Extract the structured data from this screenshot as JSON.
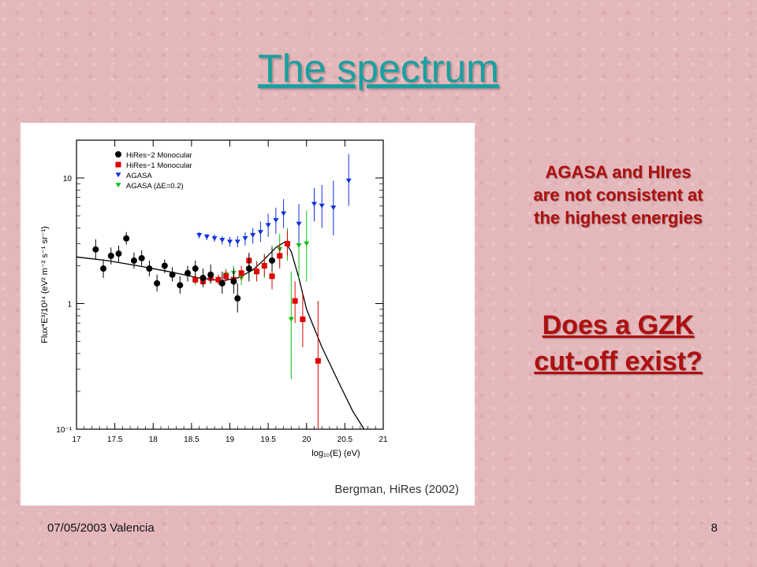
{
  "slide": {
    "title": "The spectrum",
    "side_text_lines": [
      "AGASA and HIres",
      "are not consistent at",
      "the highest energies"
    ],
    "question_lines": [
      "Does a GZK",
      "cut-off exist?"
    ],
    "footer_date": "07/05/2003 Valencia",
    "page_number": "8"
  },
  "chart_data": {
    "type": "scatter",
    "ylabel": "Flux*E³/10²⁴ (eV² m⁻² s⁻¹ sr⁻¹)",
    "xlabel": "log₁₀(E) (eV)",
    "credit": "Bergman, HiRes (2002)",
    "xlim": [
      17,
      21
    ],
    "ylim": [
      0.1,
      20
    ],
    "y_scale": "log",
    "x_ticks": [
      17,
      17.5,
      18,
      18.5,
      19,
      19.5,
      20,
      20.5,
      21
    ],
    "x_tick_labels": [
      "17",
      "17.5",
      "18",
      "18.5",
      "19",
      "19.5",
      "20",
      "20.5",
      "21"
    ],
    "y_ticks": [
      0.1,
      1,
      10
    ],
    "y_tick_labels": [
      "10⁻¹",
      "1",
      "10"
    ],
    "legend_position": "top-left",
    "series": [
      {
        "name": "HiRes−2 Monocular",
        "marker": "circle",
        "color": "#000000",
        "points": [
          [
            17.25,
            2.7,
            2.25,
            3.25
          ],
          [
            17.35,
            1.9,
            1.6,
            2.25
          ],
          [
            17.45,
            2.4,
            2.05,
            2.8
          ],
          [
            17.55,
            2.5,
            2.15,
            2.9
          ],
          [
            17.65,
            3.3,
            2.95,
            3.7
          ],
          [
            17.75,
            2.2,
            1.9,
            2.55
          ],
          [
            17.85,
            2.3,
            2.0,
            2.65
          ],
          [
            17.95,
            1.9,
            1.65,
            2.2
          ],
          [
            18.05,
            1.45,
            1.25,
            1.7
          ],
          [
            18.15,
            2.0,
            1.75,
            2.25
          ],
          [
            18.25,
            1.7,
            1.5,
            1.95
          ],
          [
            18.35,
            1.4,
            1.2,
            1.65
          ],
          [
            18.45,
            1.75,
            1.5,
            2.0
          ],
          [
            18.55,
            1.9,
            1.6,
            2.2
          ],
          [
            18.65,
            1.6,
            1.35,
            1.9
          ],
          [
            18.75,
            1.7,
            1.45,
            2.05
          ],
          [
            18.9,
            1.45,
            1.2,
            1.8
          ],
          [
            19.05,
            1.5,
            1.2,
            1.9
          ],
          [
            19.1,
            1.1,
            0.85,
            1.45
          ],
          [
            19.25,
            1.9,
            1.5,
            2.5
          ],
          [
            19.55,
            2.2,
            1.8,
            2.8
          ]
        ]
      },
      {
        "name": "HiRes−1 Monocular",
        "marker": "square",
        "color": "#e00000",
        "points": [
          [
            18.55,
            1.55,
            1.45,
            1.7
          ],
          [
            18.65,
            1.5,
            1.4,
            1.65
          ],
          [
            18.75,
            1.6,
            1.48,
            1.75
          ],
          [
            18.85,
            1.55,
            1.42,
            1.7
          ],
          [
            18.95,
            1.65,
            1.5,
            1.85
          ],
          [
            19.05,
            1.55,
            1.4,
            1.75
          ],
          [
            19.15,
            1.75,
            1.55,
            2.0
          ],
          [
            19.25,
            2.2,
            1.9,
            2.55
          ],
          [
            19.35,
            1.8,
            1.5,
            2.15
          ],
          [
            19.45,
            2.0,
            1.65,
            2.45
          ],
          [
            19.55,
            1.65,
            1.3,
            2.1
          ],
          [
            19.65,
            2.4,
            1.9,
            3.0
          ],
          [
            19.75,
            3.0,
            2.4,
            3.8
          ],
          [
            19.85,
            1.05,
            0.7,
            1.5
          ],
          [
            19.95,
            0.75,
            0.45,
            1.2
          ],
          [
            20.15,
            0.35,
            0.1,
            1.05
          ]
        ]
      },
      {
        "name": "AGASA",
        "marker": "triangle-down",
        "color": "#1030e0",
        "points": [
          [
            18.6,
            3.5,
            3.3,
            3.7
          ],
          [
            18.7,
            3.4,
            3.2,
            3.6
          ],
          [
            18.8,
            3.3,
            3.1,
            3.55
          ],
          [
            18.9,
            3.2,
            2.95,
            3.45
          ],
          [
            19.0,
            3.1,
            2.85,
            3.4
          ],
          [
            19.1,
            3.1,
            2.8,
            3.45
          ],
          [
            19.2,
            3.3,
            2.9,
            3.7
          ],
          [
            19.3,
            3.5,
            3.0,
            4.0
          ],
          [
            19.4,
            3.7,
            3.1,
            4.5
          ],
          [
            19.5,
            4.2,
            3.4,
            5.2
          ],
          [
            19.6,
            4.6,
            3.6,
            5.8
          ],
          [
            19.7,
            5.2,
            4.0,
            6.8
          ],
          [
            19.9,
            4.3,
            3.0,
            6.2
          ],
          [
            20.1,
            6.2,
            4.5,
            8.3
          ],
          [
            20.2,
            6.0,
            4.0,
            8.8
          ],
          [
            20.35,
            5.8,
            3.5,
            9.5
          ],
          [
            20.55,
            9.5,
            6.0,
            15.5
          ]
        ]
      },
      {
        "name": "AGASA (ΔE=0.2)",
        "marker": "triangle-down",
        "color": "#10c010",
        "points": [
          [
            18.55,
            1.5,
            1.4,
            1.6
          ],
          [
            18.65,
            1.5,
            1.4,
            1.6
          ],
          [
            18.75,
            1.55,
            1.45,
            1.68
          ],
          [
            18.85,
            1.55,
            1.43,
            1.7
          ],
          [
            18.95,
            1.7,
            1.55,
            1.9
          ],
          [
            19.05,
            1.75,
            1.55,
            2.0
          ],
          [
            19.15,
            1.6,
            1.4,
            1.85
          ],
          [
            19.25,
            1.85,
            1.6,
            2.15
          ],
          [
            19.35,
            1.8,
            1.5,
            2.2
          ],
          [
            19.45,
            2.0,
            1.6,
            2.5
          ],
          [
            19.55,
            2.2,
            1.7,
            2.9
          ],
          [
            19.65,
            2.7,
            2.0,
            3.6
          ],
          [
            19.75,
            3.0,
            2.2,
            4.0
          ],
          [
            19.8,
            0.75,
            0.25,
            1.8
          ],
          [
            19.9,
            2.9,
            1.6,
            4.8
          ],
          [
            20.0,
            3.0,
            1.5,
            5.5
          ]
        ]
      }
    ],
    "fit_curve": [
      [
        17.0,
        2.35
      ],
      [
        17.4,
        2.2
      ],
      [
        17.8,
        2.0
      ],
      [
        18.2,
        1.8
      ],
      [
        18.6,
        1.6
      ],
      [
        18.9,
        1.52
      ],
      [
        19.1,
        1.6
      ],
      [
        19.3,
        1.85
      ],
      [
        19.45,
        2.25
      ],
      [
        19.6,
        2.8
      ],
      [
        19.72,
        3.1
      ],
      [
        19.8,
        2.6
      ],
      [
        19.9,
        1.6
      ],
      [
        20.0,
        0.9
      ],
      [
        20.2,
        0.45
      ],
      [
        20.4,
        0.25
      ],
      [
        20.6,
        0.14
      ],
      [
        20.75,
        0.1
      ]
    ]
  }
}
